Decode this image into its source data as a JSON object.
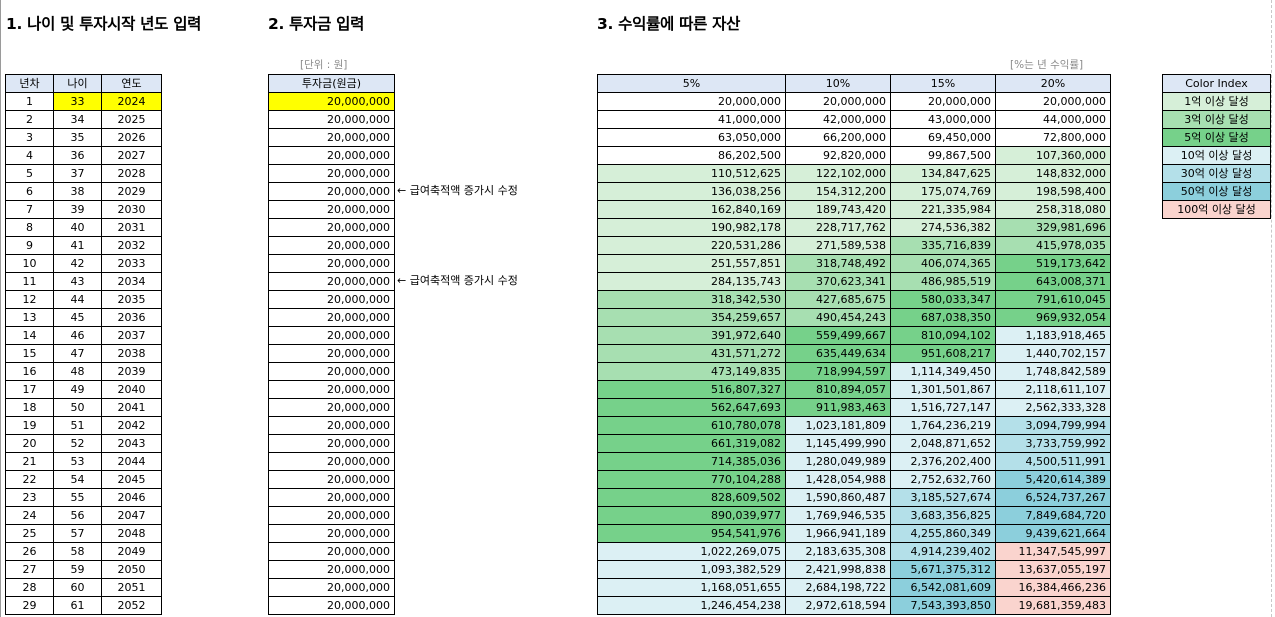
{
  "titles": {
    "section1": "1. 나이 및 투자시작 년도 입력",
    "section2": "2. 투자금 입력",
    "section3": "3. 수익률에 따른 자산"
  },
  "notes": {
    "unit": "[단위 : 원]",
    "rate": "[%는 년 수익률]",
    "arrow1": "← 급여축적액 증가시 수정",
    "arrow2": "← 급여축적액 증가시 수정"
  },
  "table1": {
    "headers": [
      "년차",
      "나이",
      "연도"
    ],
    "rows": [
      [
        "1",
        "33",
        "2024"
      ],
      [
        "2",
        "34",
        "2025"
      ],
      [
        "3",
        "35",
        "2026"
      ],
      [
        "4",
        "36",
        "2027"
      ],
      [
        "5",
        "37",
        "2028"
      ],
      [
        "6",
        "38",
        "2029"
      ],
      [
        "7",
        "39",
        "2030"
      ],
      [
        "8",
        "40",
        "2031"
      ],
      [
        "9",
        "41",
        "2032"
      ],
      [
        "10",
        "42",
        "2033"
      ],
      [
        "11",
        "43",
        "2034"
      ],
      [
        "12",
        "44",
        "2035"
      ],
      [
        "13",
        "45",
        "2036"
      ],
      [
        "14",
        "46",
        "2037"
      ],
      [
        "15",
        "47",
        "2038"
      ],
      [
        "16",
        "48",
        "2039"
      ],
      [
        "17",
        "49",
        "2040"
      ],
      [
        "18",
        "50",
        "2041"
      ],
      [
        "19",
        "51",
        "2042"
      ],
      [
        "20",
        "52",
        "2043"
      ],
      [
        "21",
        "53",
        "2044"
      ],
      [
        "22",
        "54",
        "2045"
      ],
      [
        "23",
        "55",
        "2046"
      ],
      [
        "24",
        "56",
        "2047"
      ],
      [
        "25",
        "57",
        "2048"
      ],
      [
        "26",
        "58",
        "2049"
      ],
      [
        "27",
        "59",
        "2050"
      ],
      [
        "28",
        "60",
        "2051"
      ],
      [
        "29",
        "61",
        "2052"
      ]
    ]
  },
  "table2": {
    "header": "투자금(원금)",
    "values": [
      "20,000,000",
      "20,000,000",
      "20,000,000",
      "20,000,000",
      "20,000,000",
      "20,000,000",
      "20,000,000",
      "20,000,000",
      "20,000,000",
      "20,000,000",
      "20,000,000",
      "20,000,000",
      "20,000,000",
      "20,000,000",
      "20,000,000",
      "20,000,000",
      "20,000,000",
      "20,000,000",
      "20,000,000",
      "20,000,000",
      "20,000,000",
      "20,000,000",
      "20,000,000",
      "20,000,000",
      "20,000,000",
      "20,000,000",
      "20,000,000",
      "20,000,000",
      "20,000,000"
    ]
  },
  "table3": {
    "headers": [
      "5%",
      "10%",
      "15%",
      "20%"
    ],
    "rows": [
      [
        "20,000,000",
        "20,000,000",
        "20,000,000",
        "20,000,000"
      ],
      [
        "41,000,000",
        "42,000,000",
        "43,000,000",
        "44,000,000"
      ],
      [
        "63,050,000",
        "66,200,000",
        "69,450,000",
        "72,800,000"
      ],
      [
        "86,202,500",
        "92,820,000",
        "99,867,500",
        "107,360,000"
      ],
      [
        "110,512,625",
        "122,102,000",
        "134,847,625",
        "148,832,000"
      ],
      [
        "136,038,256",
        "154,312,200",
        "175,074,769",
        "198,598,400"
      ],
      [
        "162,840,169",
        "189,743,420",
        "221,335,984",
        "258,318,080"
      ],
      [
        "190,982,178",
        "228,717,762",
        "274,536,382",
        "329,981,696"
      ],
      [
        "220,531,286",
        "271,589,538",
        "335,716,839",
        "415,978,035"
      ],
      [
        "251,557,851",
        "318,748,492",
        "406,074,365",
        "519,173,642"
      ],
      [
        "284,135,743",
        "370,623,341",
        "486,985,519",
        "643,008,371"
      ],
      [
        "318,342,530",
        "427,685,675",
        "580,033,347",
        "791,610,045"
      ],
      [
        "354,259,657",
        "490,454,243",
        "687,038,350",
        "969,932,054"
      ],
      [
        "391,972,640",
        "559,499,667",
        "810,094,102",
        "1,183,918,465"
      ],
      [
        "431,571,272",
        "635,449,634",
        "951,608,217",
        "1,440,702,157"
      ],
      [
        "473,149,835",
        "718,994,597",
        "1,114,349,450",
        "1,748,842,589"
      ],
      [
        "516,807,327",
        "810,894,057",
        "1,301,501,867",
        "2,118,611,107"
      ],
      [
        "562,647,693",
        "911,983,463",
        "1,516,727,147",
        "2,562,333,328"
      ],
      [
        "610,780,078",
        "1,023,181,809",
        "1,764,236,219",
        "3,094,799,994"
      ],
      [
        "661,319,082",
        "1,145,499,990",
        "2,048,871,652",
        "3,733,759,992"
      ],
      [
        "714,385,036",
        "1,280,049,989",
        "2,376,202,400",
        "4,500,511,991"
      ],
      [
        "770,104,288",
        "1,428,054,988",
        "2,752,632,760",
        "5,420,614,389"
      ],
      [
        "828,609,502",
        "1,590,860,487",
        "3,185,527,674",
        "6,524,737,267"
      ],
      [
        "890,039,977",
        "1,769,946,535",
        "3,683,356,825",
        "7,849,684,720"
      ],
      [
        "954,541,976",
        "1,966,941,189",
        "4,255,860,349",
        "9,439,621,664"
      ],
      [
        "1,022,269,075",
        "2,183,635,308",
        "4,914,239,402",
        "11,347,545,997"
      ],
      [
        "1,093,382,529",
        "2,421,998,838",
        "5,671,375,312",
        "13,637,055,197"
      ],
      [
        "1,168,051,655",
        "2,684,198,722",
        "6,542,081,609",
        "16,384,466,236"
      ],
      [
        "1,246,454,238",
        "2,972,618,594",
        "7,543,393,850",
        "19,681,359,483"
      ]
    ]
  },
  "legend": {
    "header": "Color Index",
    "items": [
      {
        "label": "1억 이상 달성",
        "color": "#d6efd8"
      },
      {
        "label": "3억 이상 달성",
        "color": "#a7dfb1"
      },
      {
        "label": "5억 이상 달성",
        "color": "#76d18a"
      },
      {
        "label": "10억 이상 달성",
        "color": "#dcf0f4"
      },
      {
        "label": "30억 이상 달성",
        "color": "#b4e0e9"
      },
      {
        "label": "50억 이상 달성",
        "color": "#8ccfdc"
      },
      {
        "label": "100억 이상 달성",
        "color": "#fad4ce"
      }
    ]
  }
}
